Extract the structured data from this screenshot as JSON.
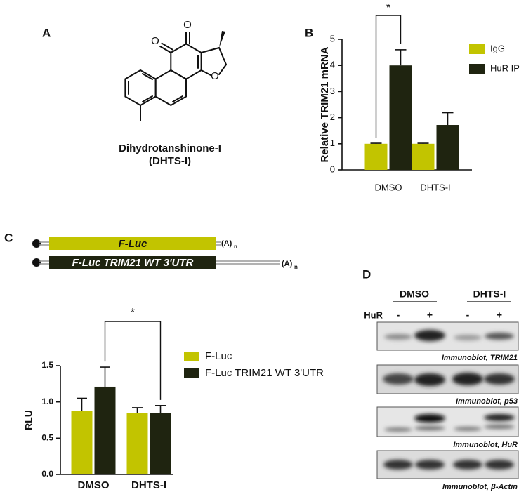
{
  "panels": {
    "a": {
      "label": "A",
      "atoms": [
        "O",
        "O",
        "O"
      ],
      "compound_name": "Dihydrotanshinone-I",
      "compound_abbrev": "(DHTS-I)"
    },
    "b": {
      "label": "B"
    },
    "c": {
      "label": "C",
      "constructs": [
        {
          "label": "F-Luc",
          "tail": "(A)",
          "tail_sub": "n"
        },
        {
          "label": "F-Luc TRIM21 WT 3'UTR",
          "tail": "(A)",
          "tail_sub": "n"
        }
      ]
    },
    "d": {
      "label": "D",
      "groups": [
        "DMSO",
        "DHTS-I"
      ],
      "row_label": "HuR",
      "lanes": [
        "-",
        "+",
        "-",
        "+"
      ],
      "blots": [
        "Immunoblot, TRIM21",
        "Immunoblot, p53",
        "Immunoblot, HuR",
        "Immunoblot, β-Actin"
      ]
    }
  },
  "chart_data": [
    {
      "type": "bar",
      "ylabel": "Relative TRIM21 mRNA",
      "categories": [
        "DMSO",
        "DHTS-I"
      ],
      "series": [
        {
          "name": "IgG",
          "color": "#c2c400",
          "values": [
            1.0,
            1.0
          ],
          "errors": [
            0.02,
            0.02
          ]
        },
        {
          "name": "HuR IP",
          "color": "#1f2410",
          "values": [
            4.0,
            1.72
          ],
          "errors": [
            0.6,
            0.47
          ]
        }
      ],
      "ylim": [
        0,
        5
      ],
      "yticks": [
        0,
        1,
        2,
        3,
        4,
        5
      ],
      "legend": "right",
      "annotations": [
        "*"
      ]
    },
    {
      "type": "bar",
      "ylabel": "RLU",
      "categories": [
        "DMSO",
        "DHTS-I"
      ],
      "series": [
        {
          "name": "F-Luc",
          "color": "#c2c400",
          "values": [
            0.88,
            0.85
          ],
          "errors": [
            0.17,
            0.07
          ]
        },
        {
          "name": "F-Luc TRIM21 WT 3'UTR",
          "color": "#1f2410",
          "values": [
            1.21,
            0.85
          ],
          "errors": [
            0.27,
            0.1
          ]
        }
      ],
      "ylim": [
        0,
        1.5
      ],
      "yticks": [
        {
          "value": 0,
          "label": "0.0"
        },
        {
          "value": 0.5,
          "label": "0.5"
        },
        {
          "value": 1,
          "label": "1.0"
        },
        {
          "value": 1.5,
          "label": "1.5"
        }
      ],
      "legend": "right",
      "annotations": [
        "*"
      ]
    }
  ]
}
